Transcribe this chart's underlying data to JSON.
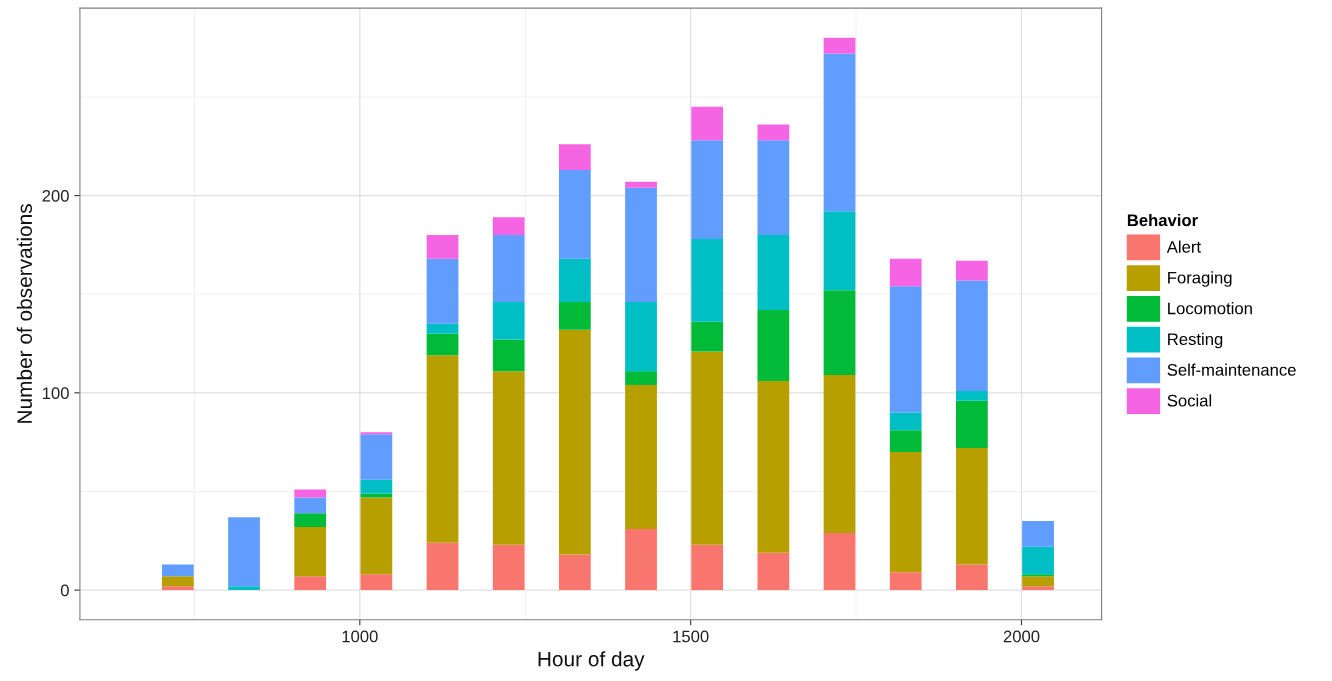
{
  "chart_data": {
    "type": "bar",
    "stacked": true,
    "xlabel": "Hour of day",
    "ylabel": "Number of observations",
    "legend_title": "Behavior",
    "legend": "right",
    "grid": true,
    "x": [
      725,
      825,
      925,
      1025,
      1125,
      1225,
      1325,
      1425,
      1525,
      1625,
      1725,
      1825,
      1925,
      2025
    ],
    "xlim": [
      577,
      2121
    ],
    "xticks": [
      1000,
      1500,
      2000
    ],
    "ylim": [
      -15,
      295
    ],
    "yticks": [
      0,
      100,
      200
    ],
    "series": [
      {
        "name": "Alert",
        "color": "#f8766d",
        "values": [
          2,
          0,
          7,
          8,
          24,
          23,
          18,
          31,
          23,
          19,
          29,
          9,
          13,
          2
        ]
      },
      {
        "name": "Foraging",
        "color": "#b79f00",
        "values": [
          5,
          0,
          25,
          39,
          95,
          88,
          114,
          73,
          98,
          87,
          80,
          61,
          59,
          5
        ]
      },
      {
        "name": "Locomotion",
        "color": "#00ba38",
        "values": [
          0,
          0,
          7,
          2,
          11,
          16,
          14,
          7,
          15,
          36,
          43,
          11,
          24,
          1
        ]
      },
      {
        "name": "Resting",
        "color": "#00bfc4",
        "values": [
          0,
          2,
          0,
          7,
          5,
          19,
          22,
          35,
          42,
          38,
          40,
          9,
          5,
          14
        ]
      },
      {
        "name": "Self-maintenance",
        "color": "#619cff",
        "values": [
          6,
          35,
          8,
          23,
          33,
          34,
          45,
          58,
          50,
          48,
          80,
          64,
          56,
          13
        ]
      },
      {
        "name": "Social",
        "color": "#f564e3",
        "values": [
          0,
          0,
          4,
          1,
          12,
          9,
          13,
          3,
          17,
          8,
          8,
          14,
          10,
          0
        ]
      }
    ]
  }
}
